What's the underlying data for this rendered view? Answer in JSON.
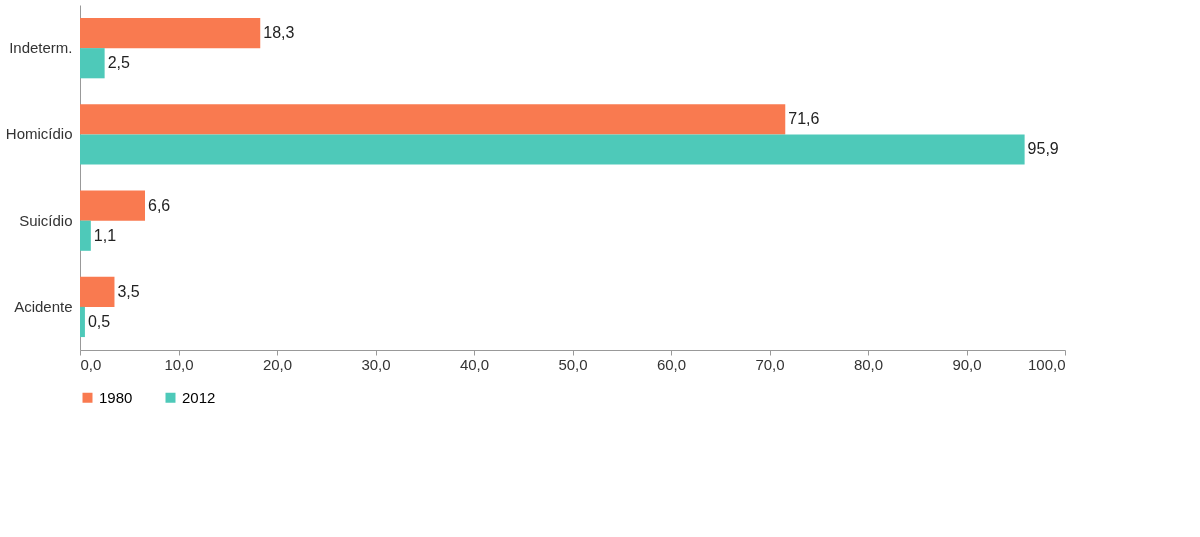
{
  "chart_data": {
    "type": "bar",
    "orientation": "horizontal",
    "categories": [
      "Indeterm.",
      "Homicídio",
      "Suicídio",
      "Acidente"
    ],
    "series": [
      {
        "name": "1980",
        "color": "#f97a50",
        "values": [
          18.3,
          71.6,
          6.6,
          3.5
        ],
        "value_labels": [
          "18,3",
          "71,6",
          "6,6",
          "3,5"
        ]
      },
      {
        "name": "2012",
        "color": "#4ec9b9",
        "values": [
          2.5,
          95.9,
          1.1,
          0.5
        ],
        "value_labels": [
          "2,5",
          "95,9",
          "1,1",
          "0,5"
        ]
      }
    ],
    "xlim": [
      0,
      100
    ],
    "xticks": [
      {
        "value": 0,
        "label": "0,0"
      },
      {
        "value": 10,
        "label": "10,0"
      },
      {
        "value": 20,
        "label": "20,0"
      },
      {
        "value": 30,
        "label": "30,0"
      },
      {
        "value": 40,
        "label": "40,0"
      },
      {
        "value": 50,
        "label": "50,0"
      },
      {
        "value": 60,
        "label": "60,0"
      },
      {
        "value": 70,
        "label": "70,0"
      },
      {
        "value": 80,
        "label": "80,0"
      },
      {
        "value": 90,
        "label": "90,0"
      },
      {
        "value": 100,
        "label": "100,0"
      }
    ],
    "grid": false,
    "legend": "bottom"
  }
}
